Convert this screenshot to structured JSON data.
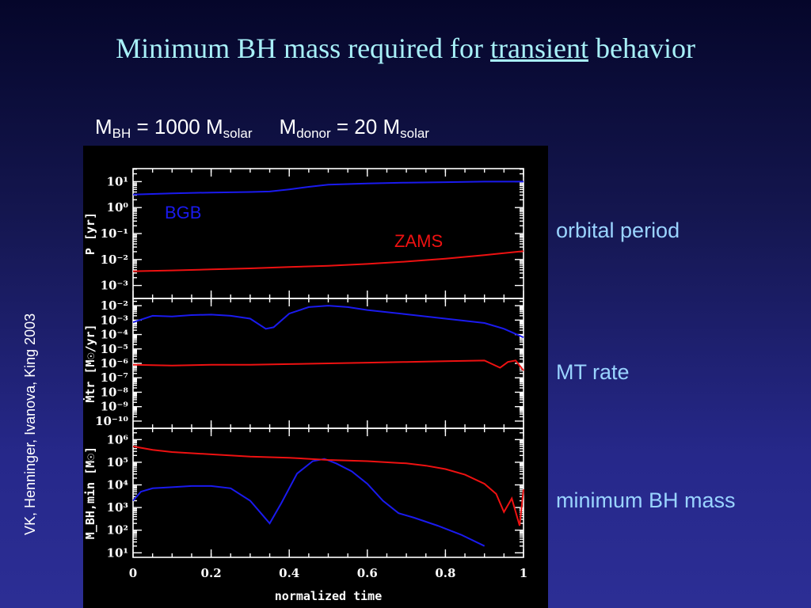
{
  "slide": {
    "title_before": "Minimum BH mass required for ",
    "title_underlined": "transient",
    "title_after": " behavior",
    "credit": "VK, Henninger, Ivanova, King 2003",
    "labels": {
      "orbital_period": "orbital period",
      "mt_rate": "MT rate",
      "min_bh_mass": "minimum BH mass"
    }
  },
  "params": {
    "bh": {
      "symbol": "M",
      "sub": "BH",
      "eq": " = 1000 M",
      "unit_sub": "solar"
    },
    "donor": {
      "symbol": "M",
      "sub": "donor",
      "eq": " = 20 M",
      "unit_sub": "solar"
    }
  },
  "colors": {
    "bgb": "#1a1aee",
    "zams": "#ee1111",
    "axis": "#ffffff",
    "label": "#9ad4ff"
  },
  "chart_data": [
    {
      "type": "line",
      "ylabel": "P [yr]",
      "yscale": "log",
      "ylim": [
        -3.5,
        1.5
      ],
      "yticks": [
        1,
        0,
        -1,
        -2,
        -3
      ],
      "ytick_labels": [
        "10¹",
        "10⁰",
        "10⁻¹",
        "10⁻²",
        "10⁻³"
      ],
      "xlim": [
        0,
        1
      ],
      "series": [
        {
          "name": "BGB",
          "color": "#1a1aee",
          "x": [
            0,
            0.1,
            0.2,
            0.3,
            0.35,
            0.4,
            0.45,
            0.5,
            0.6,
            0.7,
            0.8,
            0.9,
            1.0
          ],
          "y": [
            0.5,
            0.55,
            0.58,
            0.6,
            0.62,
            0.7,
            0.8,
            0.88,
            0.93,
            0.96,
            0.98,
            1.0,
            1.0
          ]
        },
        {
          "name": "ZAMS",
          "color": "#ee1111",
          "x": [
            0,
            0.1,
            0.2,
            0.3,
            0.4,
            0.5,
            0.6,
            0.7,
            0.8,
            0.9,
            1.0
          ],
          "y": [
            -2.45,
            -2.42,
            -2.38,
            -2.34,
            -2.29,
            -2.24,
            -2.17,
            -2.08,
            -1.97,
            -1.83,
            -1.68
          ]
        }
      ]
    },
    {
      "type": "line",
      "ylabel": "Ṁtr [M☉/yr]",
      "yscale": "log",
      "ylim": [
        -10.5,
        -1.5
      ],
      "yticks": [
        -2,
        -3,
        -4,
        -5,
        -6,
        -7,
        -8,
        -9,
        -10
      ],
      "ytick_labels": [
        "10⁻²",
        "10⁻³",
        "10⁻⁴",
        "10⁻⁵",
        "10⁻⁶",
        "10⁻⁷",
        "10⁻⁸",
        "10⁻⁹",
        "10⁻¹⁰"
      ],
      "xlim": [
        0,
        1
      ],
      "series": [
        {
          "name": "BGB",
          "color": "#1a1aee",
          "x": [
            0,
            0.05,
            0.1,
            0.15,
            0.2,
            0.25,
            0.3,
            0.34,
            0.36,
            0.4,
            0.45,
            0.5,
            0.55,
            0.6,
            0.7,
            0.8,
            0.9,
            0.95,
            1.0
          ],
          "y": [
            -3.15,
            -2.7,
            -2.75,
            -2.65,
            -2.62,
            -2.7,
            -2.9,
            -3.6,
            -3.5,
            -2.55,
            -2.1,
            -2.0,
            -2.1,
            -2.3,
            -2.6,
            -2.9,
            -3.2,
            -3.6,
            -4.2
          ]
        },
        {
          "name": "ZAMS",
          "color": "#ee1111",
          "x": [
            0,
            0.1,
            0.2,
            0.3,
            0.4,
            0.5,
            0.6,
            0.7,
            0.8,
            0.9,
            0.94,
            0.96,
            0.98,
            1.0
          ],
          "y": [
            -6.1,
            -6.15,
            -6.1,
            -6.1,
            -6.05,
            -6.0,
            -5.95,
            -5.9,
            -5.85,
            -5.8,
            -6.3,
            -5.9,
            -5.8,
            -6.5
          ]
        }
      ]
    },
    {
      "type": "line",
      "ylabel": "M_BH,min [M☉]",
      "yscale": "log",
      "ylim": [
        0.8,
        6.5
      ],
      "yticks": [
        6,
        5,
        4,
        3,
        2,
        1
      ],
      "ytick_labels": [
        "10⁶",
        "10⁵",
        "10⁴",
        "10³",
        "10²",
        "10¹"
      ],
      "xlabel": "normalized time",
      "xlim": [
        0,
        1
      ],
      "xticks": [
        0,
        0.2,
        0.4,
        0.6,
        0.8,
        1
      ],
      "xtick_labels": [
        "0",
        "0.2",
        "0.4",
        "0.6",
        "0.8",
        "1"
      ],
      "series": [
        {
          "name": "BGB",
          "color": "#1a1aee",
          "x": [
            0,
            0.02,
            0.05,
            0.1,
            0.15,
            0.2,
            0.25,
            0.3,
            0.33,
            0.35,
            0.38,
            0.42,
            0.46,
            0.49,
            0.52,
            0.56,
            0.6,
            0.64,
            0.68,
            0.72,
            0.78,
            0.84,
            0.9
          ],
          "y": [
            3.3,
            3.7,
            3.85,
            3.9,
            3.95,
            3.95,
            3.85,
            3.3,
            2.7,
            2.3,
            3.2,
            4.5,
            5.05,
            5.15,
            4.95,
            4.6,
            4.05,
            3.3,
            2.75,
            2.55,
            2.2,
            1.8,
            1.3
          ]
        },
        {
          "name": "ZAMS",
          "color": "#ee1111",
          "x": [
            0,
            0.05,
            0.1,
            0.2,
            0.3,
            0.4,
            0.5,
            0.6,
            0.7,
            0.75,
            0.8,
            0.85,
            0.9,
            0.93,
            0.95,
            0.97,
            0.99,
            1.0
          ],
          "y": [
            5.7,
            5.55,
            5.45,
            5.35,
            5.25,
            5.2,
            5.1,
            5.05,
            4.95,
            4.85,
            4.7,
            4.45,
            4.05,
            3.6,
            2.8,
            3.4,
            2.2,
            3.8
          ]
        }
      ]
    }
  ]
}
